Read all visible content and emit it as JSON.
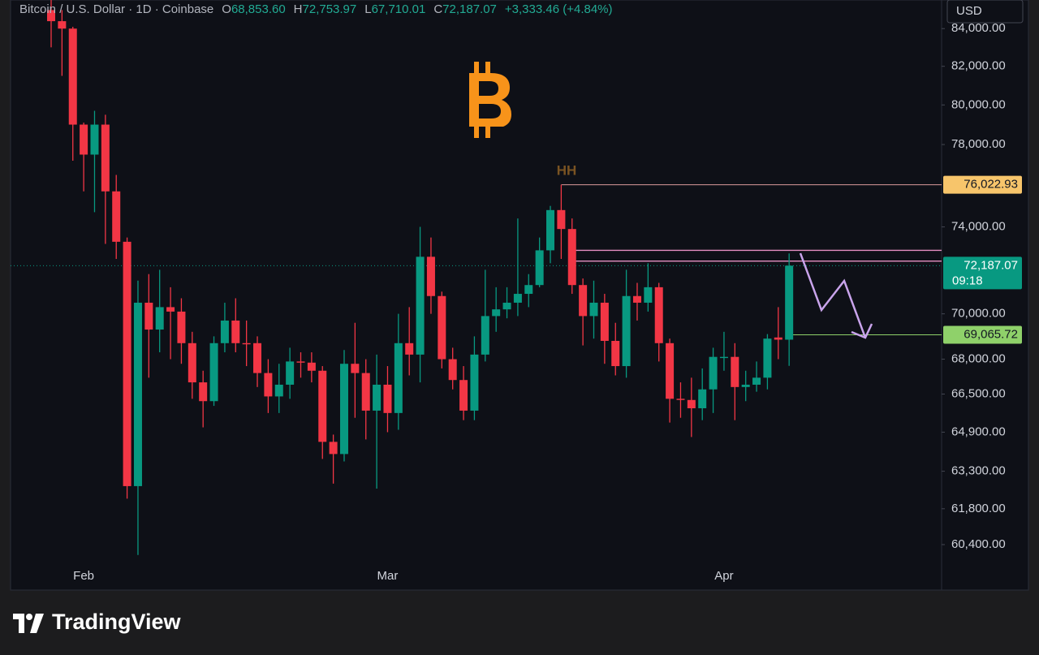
{
  "header": {
    "symbol": "Bitcoin / U.S. Dollar · 1D · Coinbase",
    "ohlc": [
      {
        "key": "O",
        "value": "68,853.60"
      },
      {
        "key": "H",
        "value": "72,753.97"
      },
      {
        "key": "L",
        "value": "67,710.01"
      },
      {
        "key": "C",
        "value": "72,187.07"
      }
    ],
    "change": "+3,333.46 (+4.84%)",
    "currency": "USD"
  },
  "chart_data": {
    "type": "candlestick",
    "log_scale": true,
    "up_color": "#089981",
    "down_color": "#f23645",
    "categories": [
      null,
      null,
      null,
      "Feb",
      null,
      null,
      null,
      null,
      null,
      null,
      null,
      null,
      null,
      null,
      null,
      null,
      null,
      null,
      null,
      null,
      null,
      null,
      null,
      null,
      null,
      null,
      null,
      null,
      null,
      null,
      null,
      "Mar",
      null,
      null,
      null,
      null,
      null,
      null,
      null,
      null,
      null,
      null,
      null,
      null,
      null,
      null,
      null,
      null,
      null,
      null,
      null,
      null,
      null,
      null,
      null,
      null,
      null,
      null,
      null,
      null,
      null,
      null,
      "Apr",
      null,
      null,
      null,
      null,
      null,
      null
    ],
    "open": [
      85000,
      84400,
      84000,
      79000,
      77500,
      79000,
      75700,
      73300,
      62700,
      70500,
      69300,
      70300,
      70100,
      68700,
      67000,
      66200,
      68700,
      69700,
      68700,
      68700,
      67400,
      66400,
      66900,
      67900,
      67850,
      67500,
      64500,
      64000,
      67800,
      67400,
      65800,
      66900,
      65700,
      68700,
      68200,
      72600,
      70800,
      68000,
      67100,
      65800,
      68200,
      69900,
      70200,
      70500,
      70900,
      71300,
      72900,
      74800,
      73900,
      71300,
      69900,
      70500,
      68800,
      67700,
      70800,
      70500,
      71200,
      68700,
      66300,
      66250,
      65900,
      66700,
      68050,
      68100,
      66800,
      66900,
      67200,
      68950,
      68853.6
    ],
    "high": [
      86000,
      85000,
      84100,
      79100,
      79700,
      79500,
      76500,
      73500,
      71500,
      71800,
      72000,
      71200,
      70700,
      69200,
      67500,
      69000,
      70500,
      70700,
      69700,
      69000,
      68000,
      67800,
      68500,
      68300,
      68300,
      67700,
      64800,
      68400,
      69600,
      68000,
      68200,
      67700,
      70000,
      70300,
      74000,
      73500,
      71000,
      68500,
      67700,
      69000,
      72000,
      71200,
      71200,
      74400,
      71800,
      73500,
      75000,
      76022.93,
      74400,
      71600,
      71500,
      70900,
      69600,
      72000,
      71400,
      72300,
      71400,
      68900,
      67000,
      67200,
      67600,
      68500,
      69200,
      68700,
      67500,
      67900,
      69100,
      70300,
      72753.97
    ],
    "low": [
      83000,
      81500,
      77200,
      75700,
      74700,
      73200,
      72500,
      62200,
      60000,
      67200,
      68300,
      68000,
      67800,
      66300,
      65100,
      66000,
      68300,
      68300,
      67700,
      66800,
      65700,
      65700,
      66300,
      67200,
      67000,
      63800,
      62800,
      63700,
      65500,
      64600,
      62600,
      64900,
      65000,
      67300,
      67000,
      70000,
      67600,
      66700,
      65400,
      65400,
      67900,
      69200,
      69800,
      69900,
      70300,
      71200,
      72300,
      72500,
      70900,
      68600,
      68900,
      67800,
      67300,
      67200,
      69700,
      70100,
      67900,
      65300,
      65500,
      64700,
      65400,
      65700,
      67500,
      65400,
      66200,
      66600,
      66700,
      68000,
      67710.01
    ],
    "close": [
      84400,
      84000,
      79000,
      77500,
      79000,
      75700,
      73300,
      62700,
      70500,
      69300,
      70300,
      70100,
      68700,
      67000,
      66200,
      68700,
      69700,
      68700,
      68650,
      67400,
      66400,
      66900,
      67900,
      67850,
      67500,
      64500,
      64000,
      67800,
      67400,
      65800,
      66900,
      65700,
      68700,
      68200,
      72600,
      70800,
      68000,
      67100,
      65800,
      68200,
      69900,
      70200,
      70500,
      70900,
      71300,
      72900,
      74800,
      73900,
      71300,
      69900,
      70500,
      68800,
      67700,
      70800,
      70500,
      71200,
      68700,
      66300,
      66250,
      65900,
      66700,
      68100,
      68100,
      66800,
      66900,
      67200,
      68900,
      68854,
      72187.07
    ],
    "ylim": [
      58700,
      85550
    ],
    "yticks": [
      {
        "value": 84000,
        "label": "84,000.00"
      },
      {
        "value": 82000,
        "label": "82,000.00"
      },
      {
        "value": 80000,
        "label": "80,000.00"
      },
      {
        "value": 78000,
        "label": "78,000.00"
      },
      {
        "value": 74000,
        "label": "74,000.00"
      },
      {
        "value": 70000,
        "label": "70,000.00"
      },
      {
        "value": 68000,
        "label": "68,000.00"
      },
      {
        "value": 66500,
        "label": "66,500.00"
      },
      {
        "value": 64900,
        "label": "64,900.00"
      },
      {
        "value": 63300,
        "label": "63,300.00"
      },
      {
        "value": 61800,
        "label": "61,800.00"
      },
      {
        "value": 60400,
        "label": "60,400.00"
      }
    ],
    "price_tags": [
      {
        "value": 76022.93,
        "label": "76,022.93",
        "color": "#f7c56b"
      },
      {
        "value": 72187.07,
        "label": "72,187.07",
        "sublabel": "09:18",
        "color": "#089981"
      },
      {
        "value": 69065.72,
        "label": "69,065.72",
        "color": "#8fd16a"
      }
    ],
    "resistance_levels": [
      72900,
      72400
    ],
    "annotation": "HH"
  },
  "footer": {
    "brand": "TradingView"
  }
}
